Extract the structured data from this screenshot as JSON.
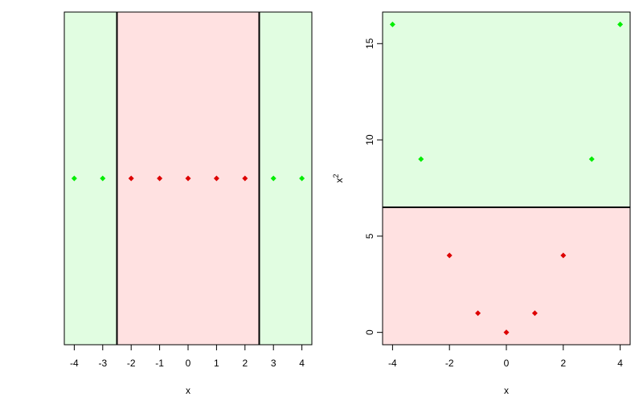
{
  "chart_data": [
    {
      "type": "scatter",
      "xlabel": "x",
      "ylabel": "",
      "xlim": [
        -4.35,
        4.35
      ],
      "ylim": [
        -1,
        1
      ],
      "x_ticks": [
        "-4",
        "-3",
        "-2",
        "-1",
        "0",
        "1",
        "2",
        "3",
        "4"
      ],
      "y_ticks": [],
      "decision_boundaries_x": [
        -2.5,
        2.5
      ],
      "regions": [
        {
          "from": -4.35,
          "to": -2.5,
          "color": "#e1fde1"
        },
        {
          "from": -2.5,
          "to": 2.5,
          "color": "#ffe1e1"
        },
        {
          "from": 2.5,
          "to": 4.35,
          "color": "#e1fde1"
        }
      ],
      "points": [
        {
          "x": -4,
          "y": 0,
          "color": "#00ee00"
        },
        {
          "x": -3,
          "y": 0,
          "color": "#00ee00"
        },
        {
          "x": -2,
          "y": 0,
          "color": "#dd0000"
        },
        {
          "x": -1,
          "y": 0,
          "color": "#dd0000"
        },
        {
          "x": 0,
          "y": 0,
          "color": "#dd0000"
        },
        {
          "x": 1,
          "y": 0,
          "color": "#dd0000"
        },
        {
          "x": 2,
          "y": 0,
          "color": "#dd0000"
        },
        {
          "x": 3,
          "y": 0,
          "color": "#00ee00"
        },
        {
          "x": 4,
          "y": 0,
          "color": "#00ee00"
        }
      ]
    },
    {
      "type": "scatter",
      "xlabel": "x",
      "ylabel": "x",
      "ylabel_superscript": "2",
      "xlim": [
        -4.35,
        4.35
      ],
      "ylim": [
        -0.64,
        16.64
      ],
      "x_ticks": [
        "-4",
        "-2",
        "0",
        "2",
        "4"
      ],
      "y_ticks": [
        "0",
        "5",
        "10",
        "15"
      ],
      "decision_boundary_y": 6.5,
      "regions": [
        {
          "from": 6.5,
          "to": 16.64,
          "color": "#e1fde1"
        },
        {
          "from": -0.64,
          "to": 6.5,
          "color": "#ffe1e1"
        }
      ],
      "points": [
        {
          "x": -4,
          "y": 16,
          "color": "#00ee00"
        },
        {
          "x": -3,
          "y": 9,
          "color": "#00ee00"
        },
        {
          "x": -2,
          "y": 4,
          "color": "#dd0000"
        },
        {
          "x": -1,
          "y": 1,
          "color": "#dd0000"
        },
        {
          "x": 0,
          "y": 0,
          "color": "#dd0000"
        },
        {
          "x": 1,
          "y": 1,
          "color": "#dd0000"
        },
        {
          "x": 2,
          "y": 4,
          "color": "#dd0000"
        },
        {
          "x": 3,
          "y": 9,
          "color": "#00ee00"
        },
        {
          "x": 4,
          "y": 16,
          "color": "#00ee00"
        }
      ]
    }
  ]
}
